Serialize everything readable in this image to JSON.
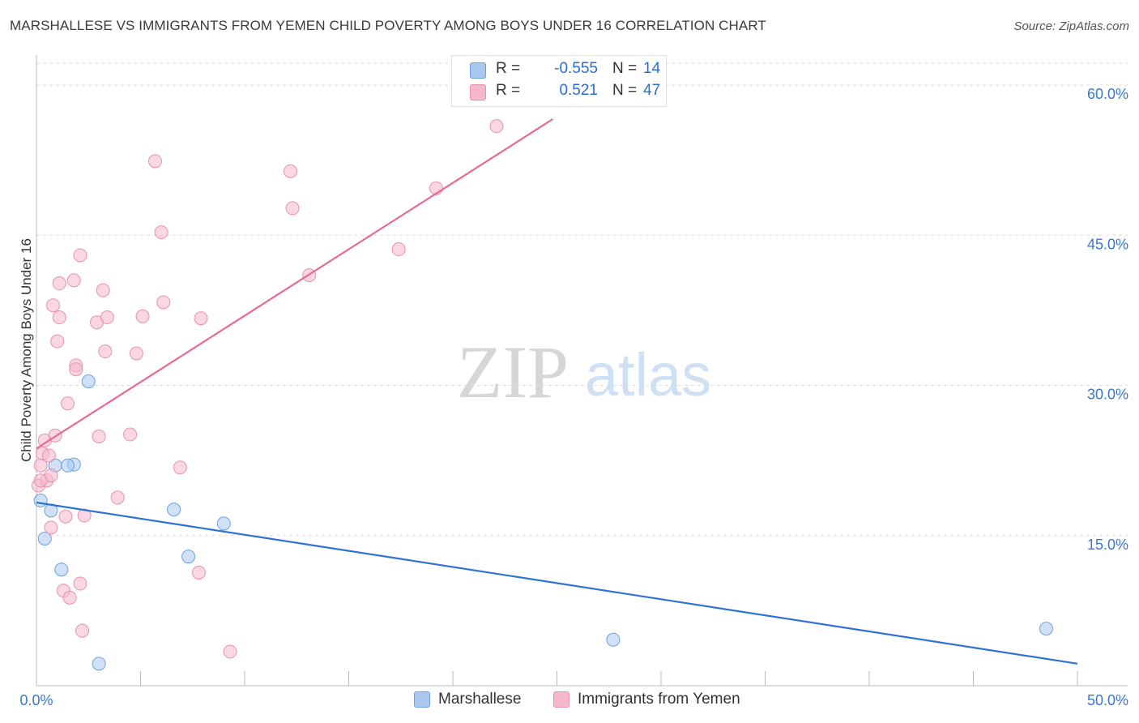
{
  "title": "MARSHALLESE VS IMMIGRANTS FROM YEMEN CHILD POVERTY AMONG BOYS UNDER 16 CORRELATION CHART",
  "source": "Source: ZipAtlas.com",
  "watermark": {
    "zip": "ZIP",
    "atlas": "atlas"
  },
  "stats": [
    {
      "r_label": "R =",
      "r_value": "-0.555",
      "n_label": "N =",
      "n_value": "14",
      "color": "#a9c8f0"
    },
    {
      "r_label": "R =",
      "r_value": "0.521",
      "n_label": "N =",
      "n_value": "47",
      "color": "#f6b6cb"
    }
  ],
  "chart_data": {
    "type": "scatter",
    "title": "MARSHALLESE VS IMMIGRANTS FROM YEMEN CHILD POVERTY AMONG BOYS UNDER 16 CORRELATION CHART",
    "xlabel": "",
    "ylabel": "Child Poverty Among Boys Under 16",
    "xlim": [
      0,
      50
    ],
    "ylim": [
      0,
      60
    ],
    "x_tick_labels": [
      "0.0%",
      "50.0%"
    ],
    "y_ticks": [
      15,
      30,
      45,
      60
    ],
    "y_tick_labels": [
      "15.0%",
      "30.0%",
      "45.0%",
      "60.0%"
    ],
    "grid": true,
    "legend_position": "bottom",
    "series": [
      {
        "name": "Marshallese",
        "color": "#a9c8f0",
        "stroke": "#6f9fdc",
        "line_color": "#2f72d6",
        "trend": {
          "x": [
            0,
            50
          ],
          "y": [
            18.3,
            2.2
          ]
        },
        "points": [
          {
            "x": 0.2,
            "y": 18.5
          },
          {
            "x": 0.4,
            "y": 14.7
          },
          {
            "x": 0.7,
            "y": 17.5
          },
          {
            "x": 0.9,
            "y": 22.0
          },
          {
            "x": 1.2,
            "y": 11.6
          },
          {
            "x": 1.8,
            "y": 22.1
          },
          {
            "x": 2.5,
            "y": 30.4
          },
          {
            "x": 3.0,
            "y": 2.2
          },
          {
            "x": 6.6,
            "y": 17.6
          },
          {
            "x": 7.3,
            "y": 12.9
          },
          {
            "x": 9.0,
            "y": 16.2
          },
          {
            "x": 27.7,
            "y": 4.6
          },
          {
            "x": 48.5,
            "y": 5.7
          },
          {
            "x": 1.5,
            "y": 22.0
          }
        ]
      },
      {
        "name": "Immigrants from Yemen",
        "color": "#f6b6cb",
        "stroke": "#ea8fae",
        "line_color": "#e66a93",
        "trend": {
          "x": [
            0,
            24.8
          ],
          "y": [
            23.7,
            56.6
          ]
        },
        "points": [
          {
            "x": 0.1,
            "y": 20.0
          },
          {
            "x": 0.2,
            "y": 22.0
          },
          {
            "x": 0.3,
            "y": 23.2
          },
          {
            "x": 0.4,
            "y": 24.5
          },
          {
            "x": 0.5,
            "y": 20.5
          },
          {
            "x": 0.6,
            "y": 23.0
          },
          {
            "x": 0.7,
            "y": 21.0
          },
          {
            "x": 0.7,
            "y": 15.8
          },
          {
            "x": 0.8,
            "y": 38.0
          },
          {
            "x": 0.9,
            "y": 25.0
          },
          {
            "x": 1.0,
            "y": 34.4
          },
          {
            "x": 1.1,
            "y": 36.8
          },
          {
            "x": 1.1,
            "y": 40.2
          },
          {
            "x": 1.3,
            "y": 9.5
          },
          {
            "x": 1.4,
            "y": 16.9
          },
          {
            "x": 1.5,
            "y": 28.2
          },
          {
            "x": 1.6,
            "y": 8.8
          },
          {
            "x": 1.8,
            "y": 40.5
          },
          {
            "x": 1.9,
            "y": 32.0
          },
          {
            "x": 1.9,
            "y": 31.6
          },
          {
            "x": 2.1,
            "y": 10.2
          },
          {
            "x": 2.1,
            "y": 43.0
          },
          {
            "x": 2.2,
            "y": 5.5
          },
          {
            "x": 2.3,
            "y": 17.0
          },
          {
            "x": 2.9,
            "y": 36.3
          },
          {
            "x": 3.0,
            "y": 24.9
          },
          {
            "x": 3.2,
            "y": 39.5
          },
          {
            "x": 3.3,
            "y": 33.4
          },
          {
            "x": 3.4,
            "y": 36.8
          },
          {
            "x": 3.9,
            "y": 18.8
          },
          {
            "x": 4.5,
            "y": 25.1
          },
          {
            "x": 4.8,
            "y": 33.2
          },
          {
            "x": 5.1,
            "y": 36.9
          },
          {
            "x": 5.7,
            "y": 52.4
          },
          {
            "x": 6.0,
            "y": 45.3
          },
          {
            "x": 6.1,
            "y": 38.3
          },
          {
            "x": 6.9,
            "y": 21.8
          },
          {
            "x": 7.8,
            "y": 11.3
          },
          {
            "x": 7.9,
            "y": 36.7
          },
          {
            "x": 9.3,
            "y": 3.4
          },
          {
            "x": 12.2,
            "y": 51.4
          },
          {
            "x": 12.3,
            "y": 47.7
          },
          {
            "x": 13.1,
            "y": 41.0
          },
          {
            "x": 17.4,
            "y": 43.6
          },
          {
            "x": 19.2,
            "y": 49.7
          },
          {
            "x": 22.1,
            "y": 55.9
          },
          {
            "x": 0.2,
            "y": 20.5
          }
        ]
      }
    ]
  }
}
